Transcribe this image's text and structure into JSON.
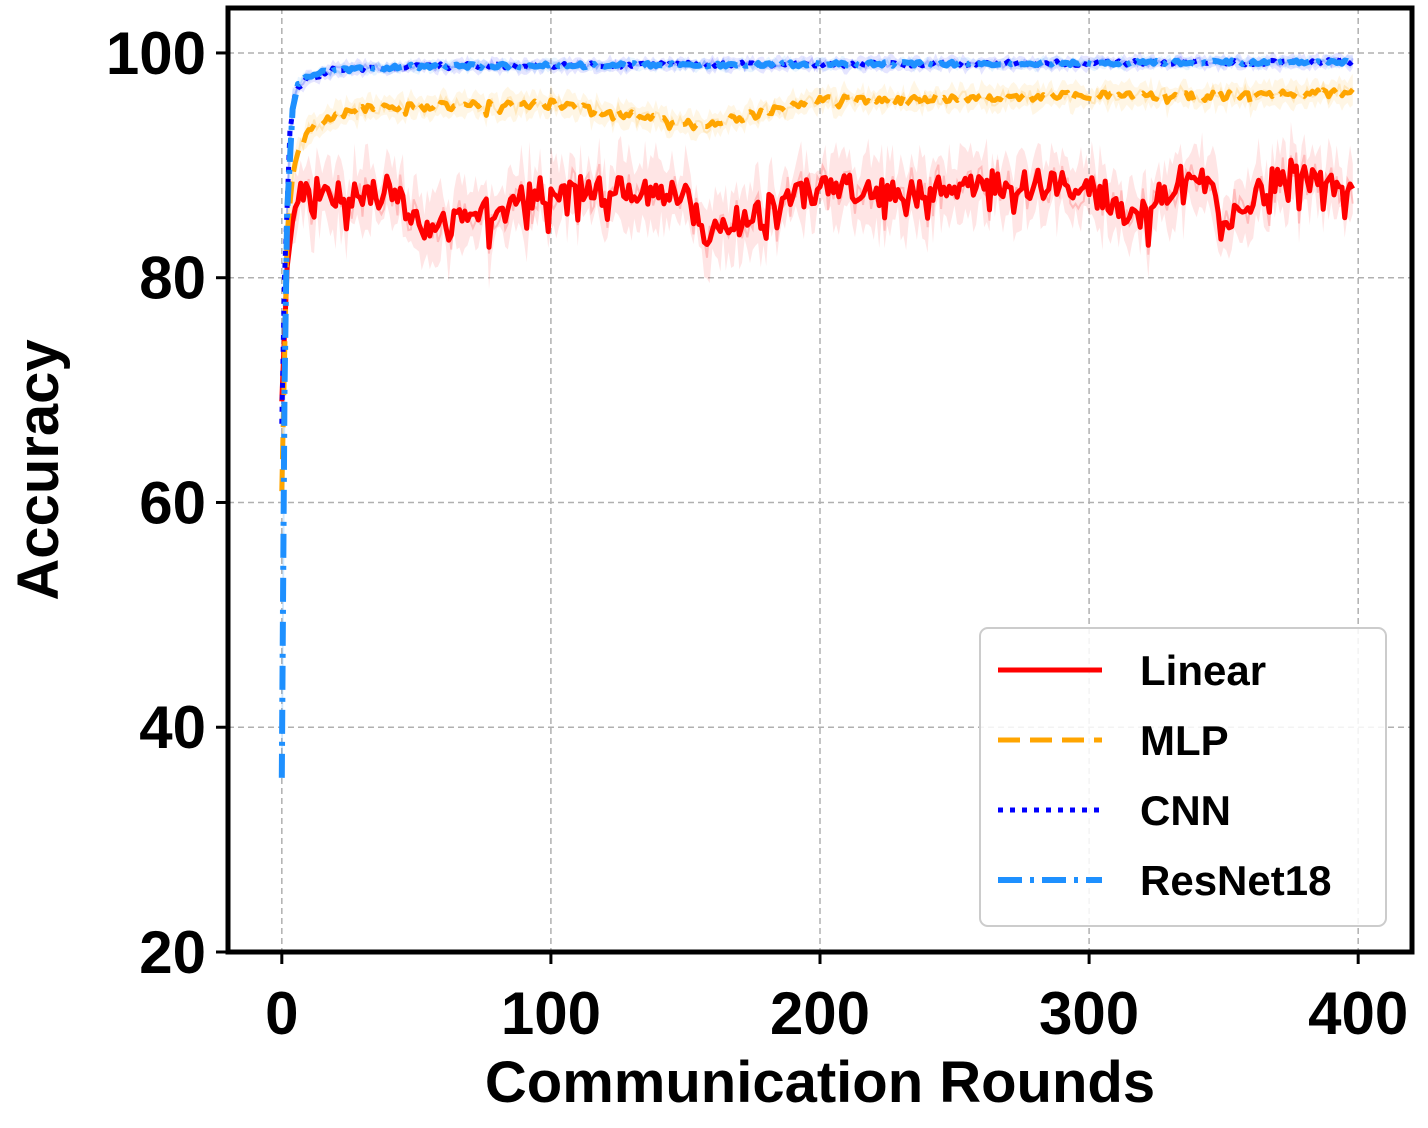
{
  "chart_data": {
    "type": "line",
    "title": "",
    "xlabel": "Communication Rounds",
    "ylabel": "Accuracy",
    "xlim": [
      -20,
      420
    ],
    "ylim": [
      20,
      104
    ],
    "xticks": [
      0,
      100,
      200,
      300,
      400
    ],
    "yticks": [
      20,
      40,
      60,
      80,
      100
    ],
    "grid": true,
    "legend_position": "lower-right",
    "rounds": 400,
    "series": [
      {
        "name": "Linear",
        "color": "#ff0000",
        "style": "solid",
        "shaded_band": true,
        "start": 69,
        "plateau": 87.8,
        "points": [
          [
            0,
            69
          ],
          [
            2,
            81
          ],
          [
            4,
            85
          ],
          [
            6,
            87.5
          ],
          [
            10,
            88
          ],
          [
            20,
            87.5
          ],
          [
            40,
            87.8
          ],
          [
            55,
            84
          ],
          [
            100,
            88
          ],
          [
            150,
            87.5
          ],
          [
            157,
            83.8
          ],
          [
            200,
            88
          ],
          [
            250,
            88.2
          ],
          [
            300,
            88.4
          ],
          [
            317,
            85.3
          ],
          [
            340,
            89.8
          ],
          [
            350,
            85.3
          ],
          [
            375,
            89.8
          ],
          [
            398,
            88
          ]
        ]
      },
      {
        "name": "MLP",
        "color": "#ffa500",
        "style": "dashed",
        "shaded_band": true,
        "start": 61,
        "plateau": 96,
        "points": [
          [
            0,
            61
          ],
          [
            2,
            84
          ],
          [
            4,
            89
          ],
          [
            6,
            91.5
          ],
          [
            10,
            93
          ],
          [
            20,
            94.5
          ],
          [
            30,
            95
          ],
          [
            50,
            95.2
          ],
          [
            100,
            95.5
          ],
          [
            156,
            93.5
          ],
          [
            200,
            95.8
          ],
          [
            250,
            96
          ],
          [
            300,
            96.2
          ],
          [
            350,
            96.2
          ],
          [
            398,
            96.5
          ]
        ]
      },
      {
        "name": "CNN",
        "color": "#0000ff",
        "style": "dotted",
        "shaded_band": true,
        "start": 67,
        "plateau": 99,
        "points": [
          [
            0,
            67
          ],
          [
            1,
            80
          ],
          [
            3,
            93
          ],
          [
            5,
            96.5
          ],
          [
            10,
            97.8
          ],
          [
            20,
            98.5
          ],
          [
            50,
            98.8
          ],
          [
            100,
            98.9
          ],
          [
            200,
            99
          ],
          [
            300,
            99.1
          ],
          [
            398,
            99.2
          ]
        ]
      },
      {
        "name": "ResNet18",
        "color": "#1e90ff",
        "style": "dashdot",
        "shaded_band": true,
        "start": 35.5,
        "plateau": 99,
        "points": [
          [
            0,
            35.5
          ],
          [
            1,
            70
          ],
          [
            2,
            86
          ],
          [
            4,
            95
          ],
          [
            6,
            97.2
          ],
          [
            10,
            98
          ],
          [
            20,
            98.5
          ],
          [
            50,
            98.8
          ],
          [
            100,
            98.9
          ],
          [
            200,
            99
          ],
          [
            300,
            99.1
          ],
          [
            398,
            99.2
          ]
        ]
      }
    ]
  }
}
